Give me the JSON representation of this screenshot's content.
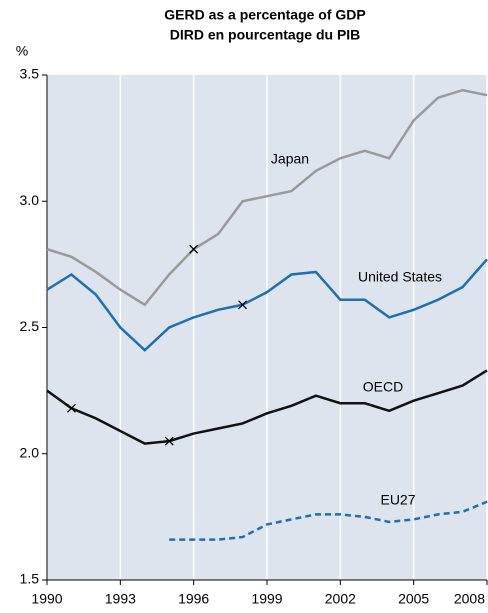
{
  "chart_data": {
    "type": "line",
    "title": "GERD as a percentage of GDP",
    "subtitle": "DIRD en pourcentage du PIB",
    "y_label": "%",
    "x": [
      1990,
      1991,
      1992,
      1993,
      1994,
      1995,
      1996,
      1997,
      1998,
      1999,
      2000,
      2001,
      2002,
      2003,
      2004,
      2005,
      2006,
      2007,
      2008
    ],
    "xlim": [
      1990,
      2008
    ],
    "xticks": [
      1990,
      1993,
      1996,
      1999,
      2002,
      2005,
      2008
    ],
    "ylim": [
      1.5,
      3.5
    ],
    "yticks": [
      {
        "value": 1.5,
        "label": "1.5"
      },
      {
        "value": 2,
        "label": "2.0"
      },
      {
        "value": 2.5,
        "label": "2.5"
      },
      {
        "value": 3,
        "label": "3.0"
      },
      {
        "value": 3.5,
        "label": "3.5"
      }
    ],
    "grid": true,
    "background": "#dde4ee",
    "series": [
      {
        "name": "Japan",
        "color": "#9a9a9a",
        "dashed": false,
        "values": [
          2.81,
          2.78,
          2.72,
          2.65,
          2.59,
          2.71,
          2.81,
          2.87,
          3.0,
          3.02,
          3.04,
          3.12,
          3.17,
          3.2,
          3.17,
          3.32,
          3.41,
          3.44,
          3.42
        ]
      },
      {
        "name": "United States",
        "color": "#1f6fb5",
        "dashed": false,
        "values": [
          2.65,
          2.71,
          2.63,
          2.5,
          2.41,
          2.5,
          2.54,
          2.57,
          2.59,
          2.64,
          2.71,
          2.72,
          2.61,
          2.61,
          2.54,
          2.57,
          2.61,
          2.66,
          2.77
        ]
      },
      {
        "name": "OECD",
        "color": "#111111",
        "dashed": false,
        "values": [
          2.25,
          2.18,
          2.14,
          2.09,
          2.04,
          2.05,
          2.08,
          2.1,
          2.12,
          2.16,
          2.19,
          2.23,
          2.2,
          2.2,
          2.17,
          2.21,
          2.24,
          2.27,
          2.33
        ]
      },
      {
        "name": "EU27",
        "color": "#1f6fb5",
        "dashed": true,
        "values": [
          null,
          null,
          null,
          null,
          null,
          1.66,
          1.66,
          1.66,
          1.67,
          1.72,
          1.74,
          1.76,
          1.76,
          1.75,
          1.73,
          1.74,
          1.76,
          1.77,
          1.81
        ]
      }
    ]
  }
}
